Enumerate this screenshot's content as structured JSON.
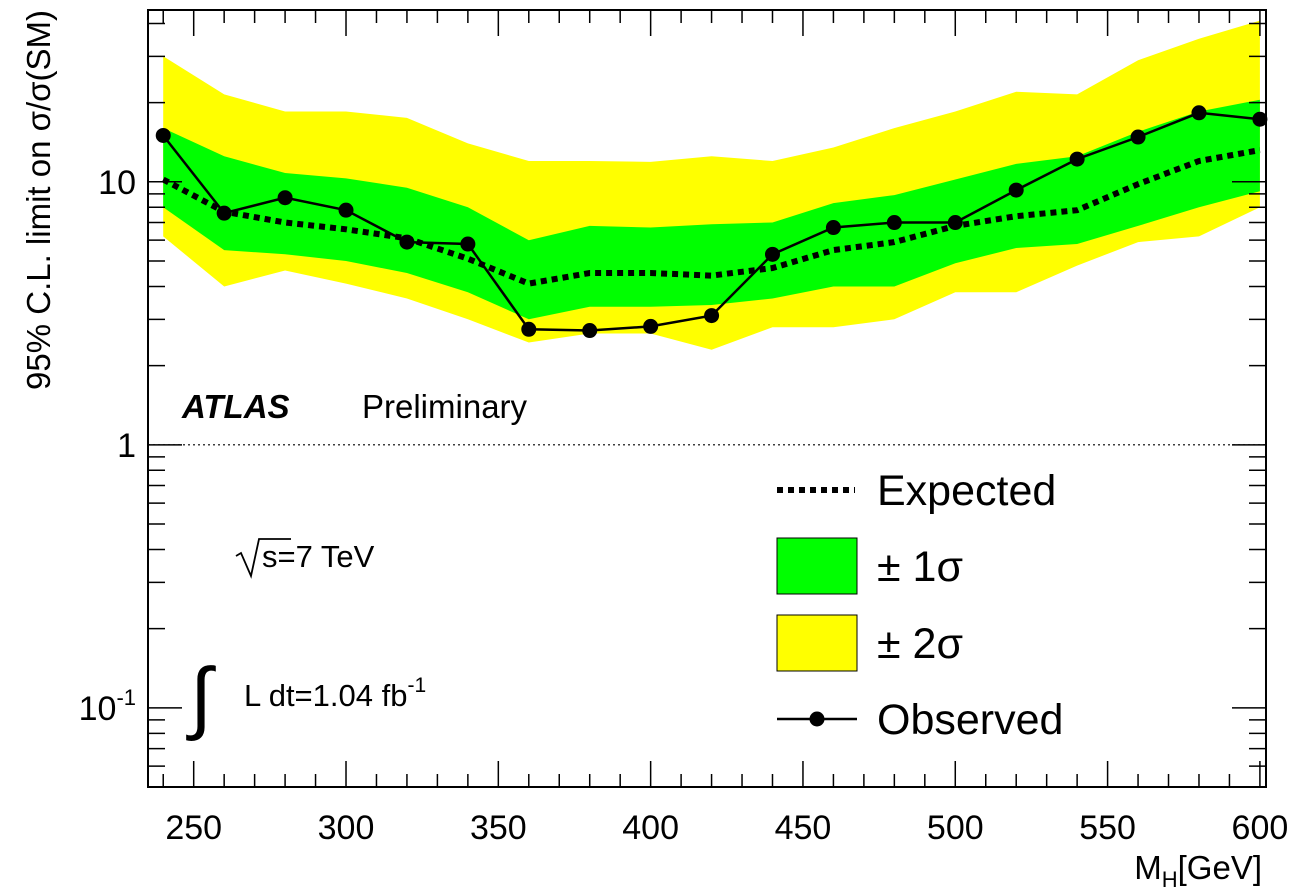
{
  "chart_data": {
    "type": "line",
    "xlabel_main": "M",
    "xlabel_sub": "H",
    "xlabel_unit": "[GeV]",
    "ylabel": "95% C.L. limit on σ/σ(SM)",
    "xlim": [
      235,
      602
    ],
    "ylim": [
      0.05,
      45
    ],
    "yscale": "log",
    "x_ticks": [
      250,
      300,
      350,
      400,
      450,
      500,
      550,
      600
    ],
    "y_tick_labels": [
      {
        "value": 0.1,
        "base": "10",
        "exp": "-1"
      },
      {
        "value": 1,
        "base": "1",
        "exp": ""
      },
      {
        "value": 10,
        "base": "10",
        "exp": ""
      }
    ],
    "reference_line": 1,
    "x": [
      240,
      260,
      280,
      300,
      320,
      340,
      360,
      380,
      400,
      420,
      440,
      460,
      480,
      500,
      520,
      540,
      560,
      580,
      600
    ],
    "series": [
      {
        "name": "Observed",
        "style": "solid-markers",
        "color": "#000000",
        "values": [
          15.0,
          7.6,
          8.7,
          7.8,
          5.9,
          5.8,
          2.75,
          2.72,
          2.82,
          3.1,
          5.3,
          6.7,
          7.0,
          7.0,
          9.3,
          12.2,
          14.8,
          18.3,
          17.3
        ]
      },
      {
        "name": "Expected",
        "style": "dotted",
        "color": "#000000",
        "values": [
          10.2,
          7.7,
          7.0,
          6.6,
          6.1,
          5.1,
          4.1,
          4.5,
          4.5,
          4.4,
          4.7,
          5.5,
          5.9,
          6.8,
          7.4,
          7.8,
          9.8,
          12.0,
          13.2
        ]
      }
    ],
    "bands": [
      {
        "name": "± 2σ",
        "color": "#ffff00",
        "low": [
          6.2,
          4.0,
          4.6,
          4.1,
          3.6,
          3.0,
          2.45,
          2.65,
          2.65,
          2.3,
          2.8,
          2.8,
          3.0,
          3.8,
          3.8,
          4.8,
          5.9,
          6.2,
          8.0
        ],
        "high": [
          30.0,
          21.5,
          18.5,
          18.5,
          17.5,
          14.0,
          12.0,
          12.0,
          11.9,
          12.5,
          12.0,
          13.5,
          16.0,
          18.5,
          22.0,
          21.5,
          29.0,
          35.0,
          41.0
        ]
      },
      {
        "name": "± 1σ",
        "color": "#00ff00",
        "low": [
          8.0,
          5.5,
          5.3,
          5.0,
          4.5,
          3.8,
          3.0,
          3.35,
          3.35,
          3.4,
          3.6,
          4.0,
          4.0,
          4.9,
          5.6,
          5.8,
          6.8,
          8.0,
          9.2
        ],
        "high": [
          16.0,
          12.5,
          10.8,
          10.3,
          9.5,
          8.0,
          6.0,
          6.8,
          6.7,
          6.9,
          7.0,
          8.3,
          8.9,
          10.2,
          11.7,
          12.5,
          15.5,
          18.5,
          20.5
        ]
      }
    ],
    "legend": {
      "position": "bottom-right",
      "entries": [
        {
          "label": "Expected",
          "kind": "dotted"
        },
        {
          "label": "± 1σ",
          "kind": "fill",
          "color": "#00ff00"
        },
        {
          "label": "± 2σ",
          "kind": "fill",
          "color": "#ffff00"
        },
        {
          "label": "Observed",
          "kind": "marker-line"
        }
      ]
    },
    "annotations": {
      "atlas": "ATLAS",
      "preliminary": "Preliminary",
      "sqrt_s": "s=7 TeV",
      "lumi_main": "L dt=1.04 fb",
      "lumi_exp": "-1"
    }
  }
}
